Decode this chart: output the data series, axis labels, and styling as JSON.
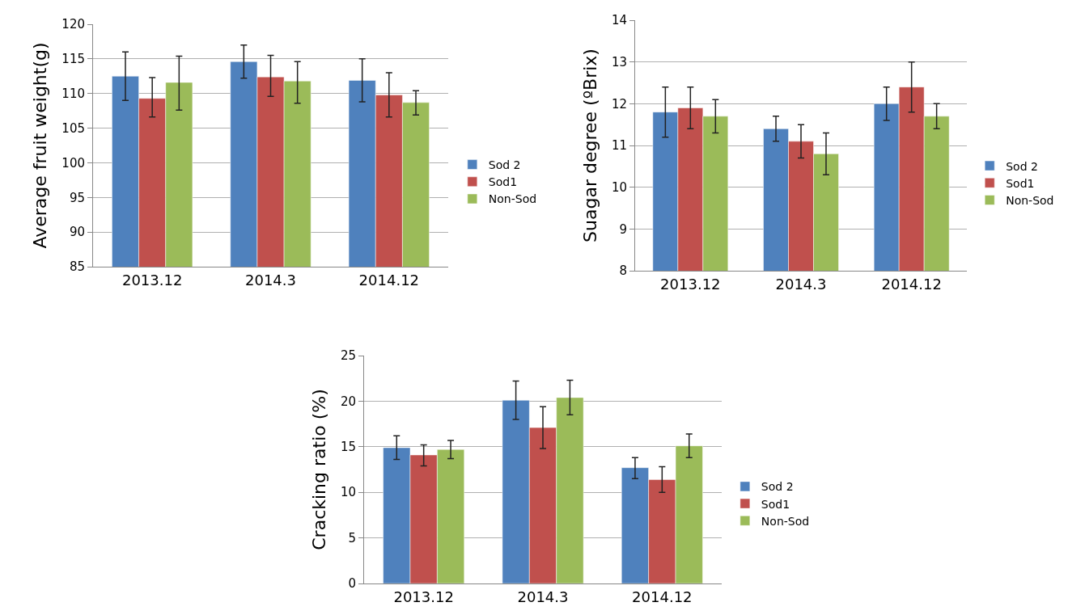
{
  "chart_data": [
    {
      "type": "bar",
      "ylabel": "Average fruit weight(g)",
      "categories": [
        "2013.12",
        "2014.3",
        "2014.12"
      ],
      "ylim": [
        85,
        120
      ],
      "yticks": [
        85,
        90,
        95,
        100,
        105,
        110,
        115,
        120
      ],
      "grid": "y",
      "legend": "right",
      "series": [
        {
          "name": "Sod 2",
          "color": "#4f81bd",
          "values": [
            112.5,
            114.6,
            111.9
          ],
          "errors": [
            [
              109,
              116
            ],
            [
              112.2,
              117
            ],
            [
              108.8,
              115
            ]
          ]
        },
        {
          "name": "Sod1",
          "color": "#c0504d",
          "values": [
            109.3,
            112.4,
            109.8
          ],
          "errors": [
            [
              106.6,
              112.3
            ],
            [
              109.6,
              115.5
            ],
            [
              106.6,
              113
            ]
          ]
        },
        {
          "name": "Non-Sod",
          "color": "#9bbb59",
          "values": [
            111.6,
            111.8,
            108.7
          ],
          "errors": [
            [
              107.6,
              115.4
            ],
            [
              108.6,
              114.6
            ],
            [
              106.9,
              110.4
            ]
          ]
        }
      ]
    },
    {
      "type": "bar",
      "ylabel": "Suagar degree (ºBrix)",
      "categories": [
        "2013.12",
        "2014.3",
        "2014.12"
      ],
      "ylim": [
        8,
        14
      ],
      "yticks": [
        8,
        9,
        10,
        11,
        12,
        13,
        14
      ],
      "grid": "y",
      "legend": "right",
      "series": [
        {
          "name": "Sod 2",
          "color": "#4f81bd",
          "values": [
            11.8,
            11.4,
            12.0
          ],
          "errors": [
            [
              11.2,
              12.4
            ],
            [
              11.1,
              11.7
            ],
            [
              11.6,
              12.4
            ]
          ]
        },
        {
          "name": "Sod1",
          "color": "#c0504d",
          "values": [
            11.9,
            11.1,
            12.4
          ],
          "errors": [
            [
              11.4,
              12.4
            ],
            [
              10.7,
              11.5
            ],
            [
              11.8,
              13.0
            ]
          ]
        },
        {
          "name": "Non-Sod",
          "color": "#9bbb59",
          "values": [
            11.7,
            10.8,
            11.7
          ],
          "errors": [
            [
              11.3,
              12.1
            ],
            [
              10.3,
              11.3
            ],
            [
              11.4,
              12.0
            ]
          ]
        }
      ]
    },
    {
      "type": "bar",
      "ylabel": "Cracking ratio (%)",
      "categories": [
        "2013.12",
        "2014.3",
        "2014.12"
      ],
      "ylim": [
        0,
        25
      ],
      "yticks": [
        0,
        5,
        10,
        15,
        20,
        25
      ],
      "grid": "y",
      "legend": "right",
      "series": [
        {
          "name": "Sod 2",
          "color": "#4f81bd",
          "values": [
            14.9,
            20.1,
            12.7
          ],
          "errors": [
            [
              13.6,
              16.2
            ],
            [
              18.0,
              22.2
            ],
            [
              11.5,
              13.8
            ]
          ]
        },
        {
          "name": "Sod1",
          "color": "#c0504d",
          "values": [
            14.1,
            17.1,
            11.4
          ],
          "errors": [
            [
              12.9,
              15.2
            ],
            [
              14.8,
              19.4
            ],
            [
              10.0,
              12.8
            ]
          ]
        },
        {
          "name": "Non-Sod",
          "color": "#9bbb59",
          "values": [
            14.7,
            20.4,
            15.1
          ],
          "errors": [
            [
              13.7,
              15.7
            ],
            [
              18.5,
              22.3
            ],
            [
              13.8,
              16.4
            ]
          ]
        }
      ]
    }
  ]
}
